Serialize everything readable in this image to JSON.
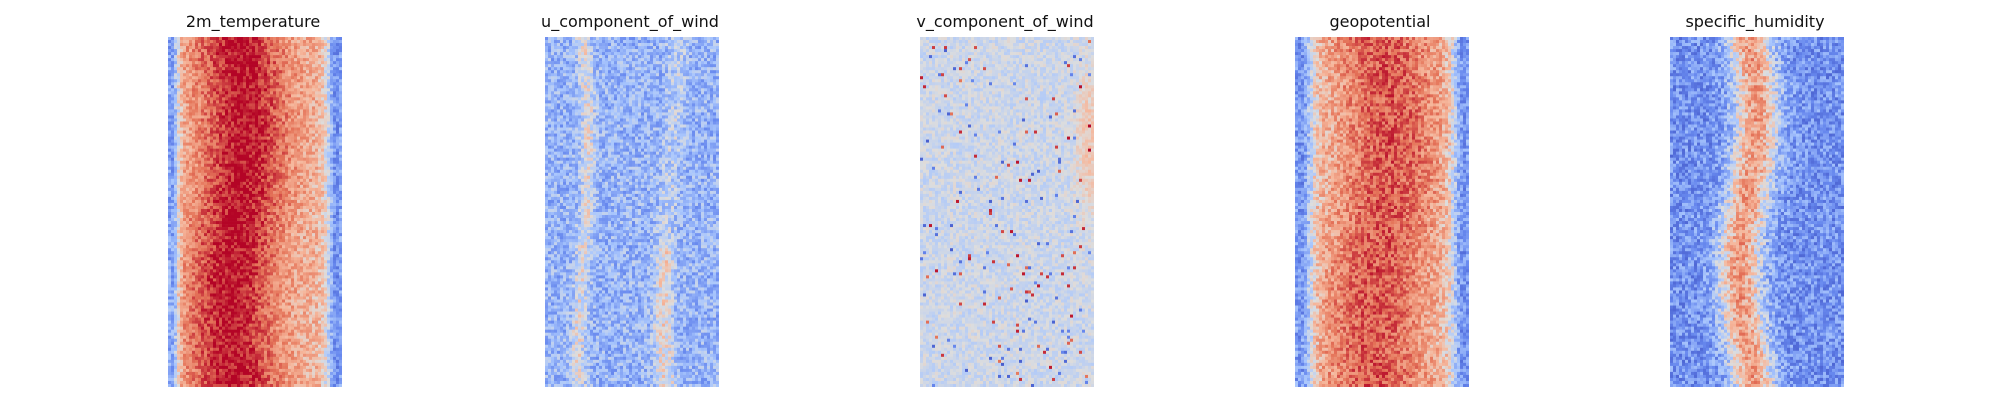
{
  "figure": {
    "colormap": "coolwarm"
  },
  "chart_data": [
    {
      "type": "heatmap",
      "title": "2m_temperature",
      "colormap": "coolwarm",
      "pattern": "warm_center_band",
      "axes": "off",
      "grid": false,
      "legend": "none"
    },
    {
      "type": "heatmap",
      "title": "u_component_of_wind",
      "colormap": "coolwarm",
      "pattern": "cool_field_faint_warm_streaks",
      "axes": "off",
      "grid": false,
      "legend": "none"
    },
    {
      "type": "heatmap",
      "title": "v_component_of_wind",
      "colormap": "coolwarm",
      "pattern": "neutral_scattered_spots",
      "axes": "off",
      "grid": false,
      "legend": "none"
    },
    {
      "type": "heatmap",
      "title": "geopotential",
      "colormap": "coolwarm",
      "pattern": "warm_center_band_cool_edges",
      "axes": "off",
      "grid": false,
      "legend": "none"
    },
    {
      "type": "heatmap",
      "title": "specific_humidity",
      "colormap": "coolwarm",
      "pattern": "cool_field_warm_narrow_band",
      "axes": "off",
      "grid": false,
      "legend": "none"
    }
  ],
  "palette": {
    "deep_blue": "#4c66d6",
    "blue": "#7a9af0",
    "light_blue": "#b7cbf9",
    "neutral": "#d6dae3",
    "light_red": "#f3b9a0",
    "salmon": "#f2a386",
    "red": "#e0654f",
    "dark_red": "#b8302f"
  }
}
